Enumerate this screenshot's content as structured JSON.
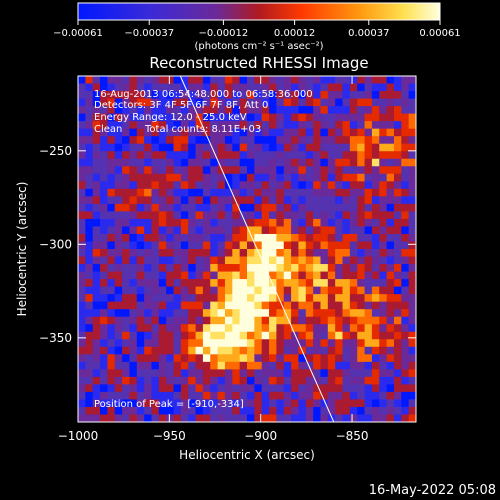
{
  "chart_data": {
    "type": "heatmap",
    "title": "Reconstructed RHESSI Image",
    "xlabel": "Heliocentric X (arcsec)",
    "ylabel": "Heliocentric Y (arcsec)",
    "xlim": [
      -1000,
      -815
    ],
    "ylim": [
      -395,
      -210
    ],
    "xticks": [
      {
        "value": -1000,
        "label": "−1000"
      },
      {
        "value": -950,
        "label": "−950"
      },
      {
        "value": -900,
        "label": "−900"
      },
      {
        "value": -850,
        "label": "−850"
      }
    ],
    "yticks": [
      {
        "value": -250,
        "label": "−250"
      },
      {
        "value": -300,
        "label": "−300"
      },
      {
        "value": -350,
        "label": "−350"
      }
    ],
    "colorbar": {
      "range": [
        -0.00061,
        0.00061
      ],
      "ticks": [
        {
          "value": -0.00061,
          "label": "−0.00061"
        },
        {
          "value": -0.00037,
          "label": "−0.00037"
        },
        {
          "value": -0.00012,
          "label": "−0.00012"
        },
        {
          "value": 0.00012,
          "label": "0.00012"
        },
        {
          "value": 0.00037,
          "label": "0.00037"
        },
        {
          "value": 0.00061,
          "label": "0.00061"
        }
      ],
      "unit_label": "(photons cm⁻² s⁻¹ asec⁻²)"
    },
    "annotations": {
      "time_range": "16-Aug-2013 06:54:48.000 to 06:58:36.000",
      "detectors": "Detectors: 3F 4F 5F 6F 7F 8F, Att 0",
      "energy_range": "Energy Range: 12.0 - 25.0 keV",
      "method": "Clean",
      "total_counts": "Total counts: 8.11E+03",
      "peak": "Position of Peak = [-910,-334]"
    },
    "peak_position": {
      "x": -910,
      "y": -334
    },
    "limb_line": [
      {
        "x": -944,
        "y": -210
      },
      {
        "x": -860,
        "y": -395
      }
    ],
    "emission_sources": [
      {
        "x": -910,
        "y": -334,
        "peak": 1.0,
        "sigma_x": 12,
        "sigma_y": 18
      },
      {
        "x": -895,
        "y": -305,
        "peak": 0.75,
        "sigma_x": 8,
        "sigma_y": 12
      },
      {
        "x": -930,
        "y": -355,
        "peak": 0.6,
        "sigma_x": 10,
        "sigma_y": 10
      },
      {
        "x": -870,
        "y": -320,
        "peak": 0.45,
        "sigma_x": 16,
        "sigma_y": 22
      },
      {
        "x": -840,
        "y": -345,
        "peak": 0.4,
        "sigma_x": 14,
        "sigma_y": 14
      },
      {
        "x": -835,
        "y": -250,
        "peak": 0.35,
        "sigma_x": 14,
        "sigma_y": 16
      },
      {
        "x": -960,
        "y": -270,
        "peak": 0.25,
        "sigma_x": 10,
        "sigma_y": 12
      }
    ],
    "colormap": [
      "#0018ff",
      "#2a2aee",
      "#5533b0",
      "#6a2a9a",
      "#aa1a30",
      "#e52a00",
      "#ff6a00",
      "#ffaa1a",
      "#ffe060",
      "#ffffdd"
    ]
  },
  "footer": {
    "timestamp": "16-May-2022 05:08"
  }
}
